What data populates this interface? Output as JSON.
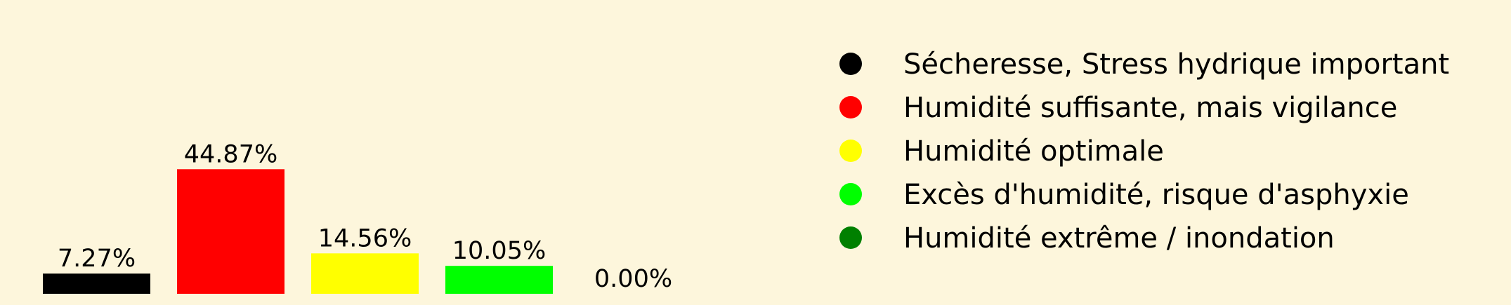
{
  "chart_data": {
    "type": "bar",
    "categories": [
      "Sécheresse, Stress hydrique important",
      "Humidité suffisante, mais vigilance",
      "Humidité optimale",
      "Excès d'humidité, risque d'asphyxie",
      "Humidité extrême / inondation"
    ],
    "values": [
      7.27,
      44.87,
      14.56,
      10.05,
      0.0
    ],
    "value_labels": [
      "7.27%",
      "44.87%",
      "14.56%",
      "10.05%",
      "0.00%"
    ],
    "colors": [
      "#000000",
      "#ff0000",
      "#ffff00",
      "#00ff00",
      "#008000"
    ],
    "ylim": [
      0,
      53
    ],
    "grid": false,
    "axes_visible": false,
    "legend": {
      "position": "right",
      "entries": [
        {
          "label": "Sécheresse, Stress hydrique important",
          "color": "#000000"
        },
        {
          "label": "Humidité suffisante, mais vigilance",
          "color": "#ff0000"
        },
        {
          "label": "Humidité optimale",
          "color": "#ffff00"
        },
        {
          "label": "Excès d'humidité, risque d'asphyxie",
          "color": "#00ff00"
        },
        {
          "label": "Humidité extrême / inondation",
          "color": "#008000"
        }
      ]
    }
  },
  "background_color": "#fdf6dc"
}
